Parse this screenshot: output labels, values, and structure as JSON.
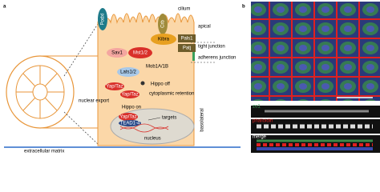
{
  "panel_a": {
    "label": "a",
    "cilium": "cilium",
    "apical": "apical",
    "tight_junction": "tight junction",
    "adherens_junction": "adherens junction",
    "basolateral": "basolateral",
    "ecm": "extracellular matrix",
    "nucleus": "nucleus",
    "proteins": {
      "podxl": "Podxl",
      "crb": "Crb",
      "pals1": "Pals1",
      "patj": "Patj",
      "kibra": "Kibra",
      "sav1": "Sav1",
      "mst": "Mst1/2",
      "mob": "Mob1A/1B",
      "lats": "Lats1/2",
      "yap1": "Yap/Taz",
      "yap2": "Yap/Taz",
      "yap3": "Yap/Taz",
      "tead": "TEAD1-4"
    },
    "annotations": {
      "hippo_off": "Hippo off",
      "retention": "cytoplasmic retention",
      "export": "nuclear export",
      "hippo_on": "Hippo on",
      "targets": "targets"
    }
  },
  "panel_b": {
    "label": "b",
    "channels": [
      "zo1",
      "phalloidin",
      "merge"
    ]
  }
}
